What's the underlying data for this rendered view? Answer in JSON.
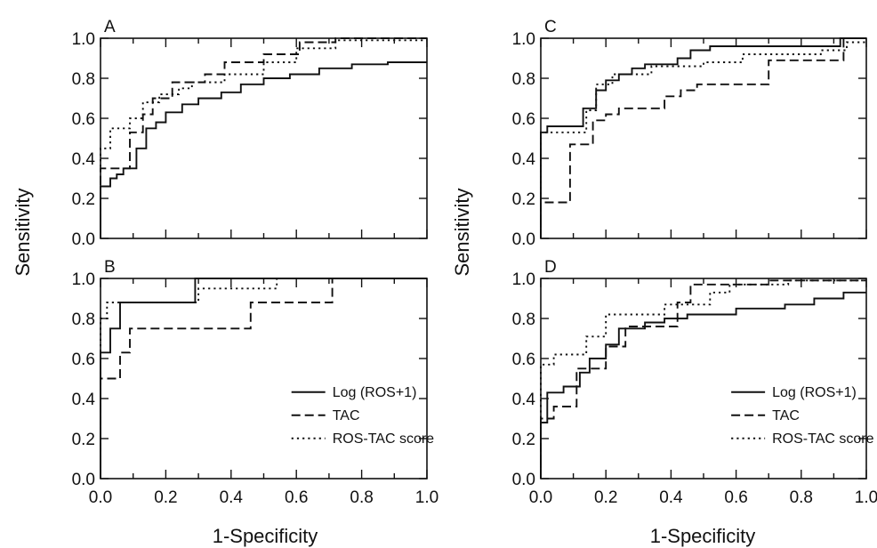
{
  "figure": {
    "ylabel": "Sensitivity",
    "xlabel": "1-Specificity",
    "series_styles": {
      "Log (ROS+1)": "solid",
      "TAC": "dashed",
      "ROS-TAC score": "dotted"
    },
    "color": "#111111"
  },
  "chart_data": [
    {
      "type": "line",
      "panel": "A",
      "title": "A",
      "xlim": [
        0,
        1
      ],
      "ylim": [
        0,
        1
      ],
      "xticks": [
        "0.0",
        "0.2",
        "0.4",
        "0.6",
        "0.8",
        "1.0"
      ],
      "yticks": [
        "0.0",
        "0.2",
        "0.4",
        "0.6",
        "0.8",
        "1.0"
      ],
      "legend": null,
      "series": [
        {
          "name": "Log (ROS+1)",
          "style": "solid",
          "points": [
            [
              0,
              0
            ],
            [
              0,
              0.26
            ],
            [
              0.03,
              0.26
            ],
            [
              0.03,
              0.3
            ],
            [
              0.05,
              0.3
            ],
            [
              0.05,
              0.32
            ],
            [
              0.07,
              0.32
            ],
            [
              0.07,
              0.35
            ],
            [
              0.11,
              0.35
            ],
            [
              0.11,
              0.45
            ],
            [
              0.14,
              0.45
            ],
            [
              0.14,
              0.55
            ],
            [
              0.17,
              0.55
            ],
            [
              0.17,
              0.58
            ],
            [
              0.2,
              0.58
            ],
            [
              0.2,
              0.63
            ],
            [
              0.25,
              0.63
            ],
            [
              0.25,
              0.67
            ],
            [
              0.3,
              0.67
            ],
            [
              0.3,
              0.7
            ],
            [
              0.37,
              0.7
            ],
            [
              0.37,
              0.73
            ],
            [
              0.43,
              0.73
            ],
            [
              0.43,
              0.77
            ],
            [
              0.5,
              0.77
            ],
            [
              0.5,
              0.8
            ],
            [
              0.58,
              0.8
            ],
            [
              0.58,
              0.82
            ],
            [
              0.67,
              0.82
            ],
            [
              0.67,
              0.85
            ],
            [
              0.77,
              0.85
            ],
            [
              0.77,
              0.87
            ],
            [
              0.88,
              0.87
            ],
            [
              0.88,
              0.88
            ],
            [
              1,
              0.88
            ]
          ]
        },
        {
          "name": "TAC",
          "style": "dashed",
          "points": [
            [
              0,
              0
            ],
            [
              0,
              0.35
            ],
            [
              0.09,
              0.35
            ],
            [
              0.09,
              0.53
            ],
            [
              0.13,
              0.53
            ],
            [
              0.13,
              0.62
            ],
            [
              0.16,
              0.62
            ],
            [
              0.16,
              0.7
            ],
            [
              0.22,
              0.7
            ],
            [
              0.22,
              0.78
            ],
            [
              0.32,
              0.78
            ],
            [
              0.32,
              0.82
            ],
            [
              0.38,
              0.82
            ],
            [
              0.38,
              0.88
            ],
            [
              0.5,
              0.88
            ],
            [
              0.5,
              0.92
            ],
            [
              0.61,
              0.92
            ],
            [
              0.61,
              0.98
            ],
            [
              0.72,
              0.98
            ],
            [
              0.72,
              1.0
            ],
            [
              1,
              1.0
            ]
          ]
        },
        {
          "name": "ROS-TAC score",
          "style": "dotted",
          "points": [
            [
              0,
              0
            ],
            [
              0,
              0.45
            ],
            [
              0.03,
              0.45
            ],
            [
              0.03,
              0.55
            ],
            [
              0.09,
              0.55
            ],
            [
              0.09,
              0.6
            ],
            [
              0.13,
              0.6
            ],
            [
              0.13,
              0.68
            ],
            [
              0.18,
              0.68
            ],
            [
              0.18,
              0.72
            ],
            [
              0.24,
              0.72
            ],
            [
              0.24,
              0.75
            ],
            [
              0.28,
              0.75
            ],
            [
              0.28,
              0.78
            ],
            [
              0.38,
              0.78
            ],
            [
              0.38,
              0.82
            ],
            [
              0.5,
              0.82
            ],
            [
              0.5,
              0.88
            ],
            [
              0.6,
              0.88
            ],
            [
              0.6,
              0.95
            ],
            [
              0.72,
              0.95
            ],
            [
              0.72,
              0.99
            ],
            [
              1,
              0.99
            ]
          ]
        }
      ]
    },
    {
      "type": "line",
      "panel": "B",
      "title": "B",
      "xlim": [
        0,
        1
      ],
      "ylim": [
        0,
        1
      ],
      "xticks": [
        "0.0",
        "0.2",
        "0.4",
        "0.6",
        "0.8",
        "1.0"
      ],
      "yticks": [
        "0.0",
        "0.2",
        "0.4",
        "0.6",
        "0.8",
        "1.0"
      ],
      "legend": "lower-right",
      "legend_entries": [
        "Log (ROS+1)",
        "TAC",
        "ROS-TAC score"
      ],
      "series": [
        {
          "name": "Log (ROS+1)",
          "style": "solid",
          "points": [
            [
              0,
              0
            ],
            [
              0,
              0.63
            ],
            [
              0.03,
              0.63
            ],
            [
              0.03,
              0.75
            ],
            [
              0.06,
              0.75
            ],
            [
              0.06,
              0.88
            ],
            [
              0.29,
              0.88
            ],
            [
              0.29,
              1.0
            ],
            [
              1,
              1.0
            ]
          ]
        },
        {
          "name": "TAC",
          "style": "dashed",
          "points": [
            [
              0,
              0
            ],
            [
              0,
              0.5
            ],
            [
              0.06,
              0.5
            ],
            [
              0.06,
              0.63
            ],
            [
              0.09,
              0.63
            ],
            [
              0.09,
              0.75
            ],
            [
              0.46,
              0.75
            ],
            [
              0.46,
              0.88
            ],
            [
              0.71,
              0.88
            ],
            [
              0.71,
              1.0
            ],
            [
              1,
              1.0
            ]
          ]
        },
        {
          "name": "ROS-TAC score",
          "style": "dotted",
          "points": [
            [
              0,
              0
            ],
            [
              0,
              0.8
            ],
            [
              0.02,
              0.8
            ],
            [
              0.02,
              0.88
            ],
            [
              0.3,
              0.88
            ],
            [
              0.3,
              0.95
            ],
            [
              0.54,
              0.95
            ],
            [
              0.54,
              1.0
            ],
            [
              1,
              1.0
            ]
          ]
        }
      ]
    },
    {
      "type": "line",
      "panel": "C",
      "title": "C",
      "xlim": [
        0,
        1
      ],
      "ylim": [
        0,
        1
      ],
      "xticks": [
        "0.0",
        "0.2",
        "0.4",
        "0.6",
        "0.8",
        "1.0"
      ],
      "yticks": [
        "0.0",
        "0.2",
        "0.4",
        "0.6",
        "0.8",
        "1.0"
      ],
      "legend": null,
      "series": [
        {
          "name": "Log (ROS+1)",
          "style": "solid",
          "points": [
            [
              0,
              0
            ],
            [
              0,
              0.53
            ],
            [
              0.02,
              0.53
            ],
            [
              0.02,
              0.56
            ],
            [
              0.13,
              0.56
            ],
            [
              0.13,
              0.65
            ],
            [
              0.17,
              0.65
            ],
            [
              0.17,
              0.74
            ],
            [
              0.2,
              0.74
            ],
            [
              0.2,
              0.79
            ],
            [
              0.24,
              0.79
            ],
            [
              0.24,
              0.82
            ],
            [
              0.28,
              0.82
            ],
            [
              0.28,
              0.85
            ],
            [
              0.32,
              0.85
            ],
            [
              0.32,
              0.87
            ],
            [
              0.42,
              0.87
            ],
            [
              0.42,
              0.9
            ],
            [
              0.46,
              0.9
            ],
            [
              0.46,
              0.94
            ],
            [
              0.52,
              0.94
            ],
            [
              0.52,
              0.96
            ],
            [
              0.92,
              0.96
            ],
            [
              0.92,
              1.0
            ],
            [
              1,
              1.0
            ]
          ]
        },
        {
          "name": "TAC",
          "style": "dashed",
          "points": [
            [
              0,
              0
            ],
            [
              0,
              0.18
            ],
            [
              0.09,
              0.18
            ],
            [
              0.09,
              0.47
            ],
            [
              0.16,
              0.47
            ],
            [
              0.16,
              0.59
            ],
            [
              0.2,
              0.59
            ],
            [
              0.2,
              0.62
            ],
            [
              0.24,
              0.62
            ],
            [
              0.24,
              0.65
            ],
            [
              0.38,
              0.65
            ],
            [
              0.38,
              0.71
            ],
            [
              0.43,
              0.71
            ],
            [
              0.43,
              0.74
            ],
            [
              0.48,
              0.74
            ],
            [
              0.48,
              0.77
            ],
            [
              0.7,
              0.77
            ],
            [
              0.7,
              0.89
            ],
            [
              0.93,
              0.89
            ],
            [
              0.93,
              1.0
            ],
            [
              1,
              1.0
            ]
          ]
        },
        {
          "name": "ROS-TAC score",
          "style": "dotted",
          "points": [
            [
              0,
              0
            ],
            [
              0,
              0.53
            ],
            [
              0.14,
              0.53
            ],
            [
              0.14,
              0.64
            ],
            [
              0.17,
              0.64
            ],
            [
              0.17,
              0.77
            ],
            [
              0.22,
              0.77
            ],
            [
              0.22,
              0.82
            ],
            [
              0.34,
              0.82
            ],
            [
              0.34,
              0.86
            ],
            [
              0.5,
              0.86
            ],
            [
              0.5,
              0.88
            ],
            [
              0.62,
              0.88
            ],
            [
              0.62,
              0.92
            ],
            [
              0.86,
              0.92
            ],
            [
              0.86,
              0.94
            ],
            [
              0.94,
              0.94
            ],
            [
              0.94,
              0.98
            ],
            [
              1,
              0.98
            ]
          ]
        }
      ]
    },
    {
      "type": "line",
      "panel": "D",
      "title": "D",
      "xlim": [
        0,
        1
      ],
      "ylim": [
        0,
        1
      ],
      "xticks": [
        "0.0",
        "0.2",
        "0.4",
        "0.6",
        "0.8",
        "1.0"
      ],
      "yticks": [
        "0.0",
        "0.2",
        "0.4",
        "0.6",
        "0.8",
        "1.0"
      ],
      "legend": "lower-right",
      "legend_entries": [
        "Log (ROS+1)",
        "TAC",
        "ROS-TAC score"
      ],
      "series": [
        {
          "name": "Log (ROS+1)",
          "style": "solid",
          "points": [
            [
              0,
              0
            ],
            [
              0,
              0.28
            ],
            [
              0.02,
              0.28
            ],
            [
              0.02,
              0.43
            ],
            [
              0.07,
              0.43
            ],
            [
              0.07,
              0.46
            ],
            [
              0.12,
              0.46
            ],
            [
              0.12,
              0.53
            ],
            [
              0.15,
              0.53
            ],
            [
              0.15,
              0.6
            ],
            [
              0.2,
              0.6
            ],
            [
              0.2,
              0.67
            ],
            [
              0.24,
              0.67
            ],
            [
              0.24,
              0.75
            ],
            [
              0.32,
              0.75
            ],
            [
              0.32,
              0.78
            ],
            [
              0.38,
              0.78
            ],
            [
              0.38,
              0.8
            ],
            [
              0.45,
              0.8
            ],
            [
              0.45,
              0.82
            ],
            [
              0.6,
              0.82
            ],
            [
              0.6,
              0.85
            ],
            [
              0.75,
              0.85
            ],
            [
              0.75,
              0.87
            ],
            [
              0.84,
              0.87
            ],
            [
              0.84,
              0.9
            ],
            [
              0.93,
              0.9
            ],
            [
              0.93,
              0.93
            ],
            [
              1,
              0.93
            ]
          ]
        },
        {
          "name": "TAC",
          "style": "dashed",
          "points": [
            [
              0,
              0
            ],
            [
              0,
              0.3
            ],
            [
              0.04,
              0.3
            ],
            [
              0.04,
              0.36
            ],
            [
              0.11,
              0.36
            ],
            [
              0.11,
              0.55
            ],
            [
              0.2,
              0.55
            ],
            [
              0.2,
              0.66
            ],
            [
              0.26,
              0.66
            ],
            [
              0.26,
              0.76
            ],
            [
              0.42,
              0.76
            ],
            [
              0.42,
              0.88
            ],
            [
              0.46,
              0.88
            ],
            [
              0.46,
              0.97
            ],
            [
              0.7,
              0.97
            ],
            [
              0.7,
              0.99
            ],
            [
              1,
              0.99
            ]
          ]
        },
        {
          "name": "ROS-TAC score",
          "style": "dotted",
          "points": [
            [
              0,
              0
            ],
            [
              0,
              0.57
            ],
            [
              0.04,
              0.57
            ],
            [
              0.04,
              0.62
            ],
            [
              0.14,
              0.62
            ],
            [
              0.14,
              0.71
            ],
            [
              0.2,
              0.71
            ],
            [
              0.2,
              0.82
            ],
            [
              0.38,
              0.82
            ],
            [
              0.38,
              0.87
            ],
            [
              0.52,
              0.87
            ],
            [
              0.52,
              0.93
            ],
            [
              0.58,
              0.93
            ],
            [
              0.58,
              0.97
            ],
            [
              0.76,
              0.97
            ],
            [
              0.76,
              0.99
            ],
            [
              1,
              0.99
            ]
          ]
        }
      ]
    }
  ]
}
